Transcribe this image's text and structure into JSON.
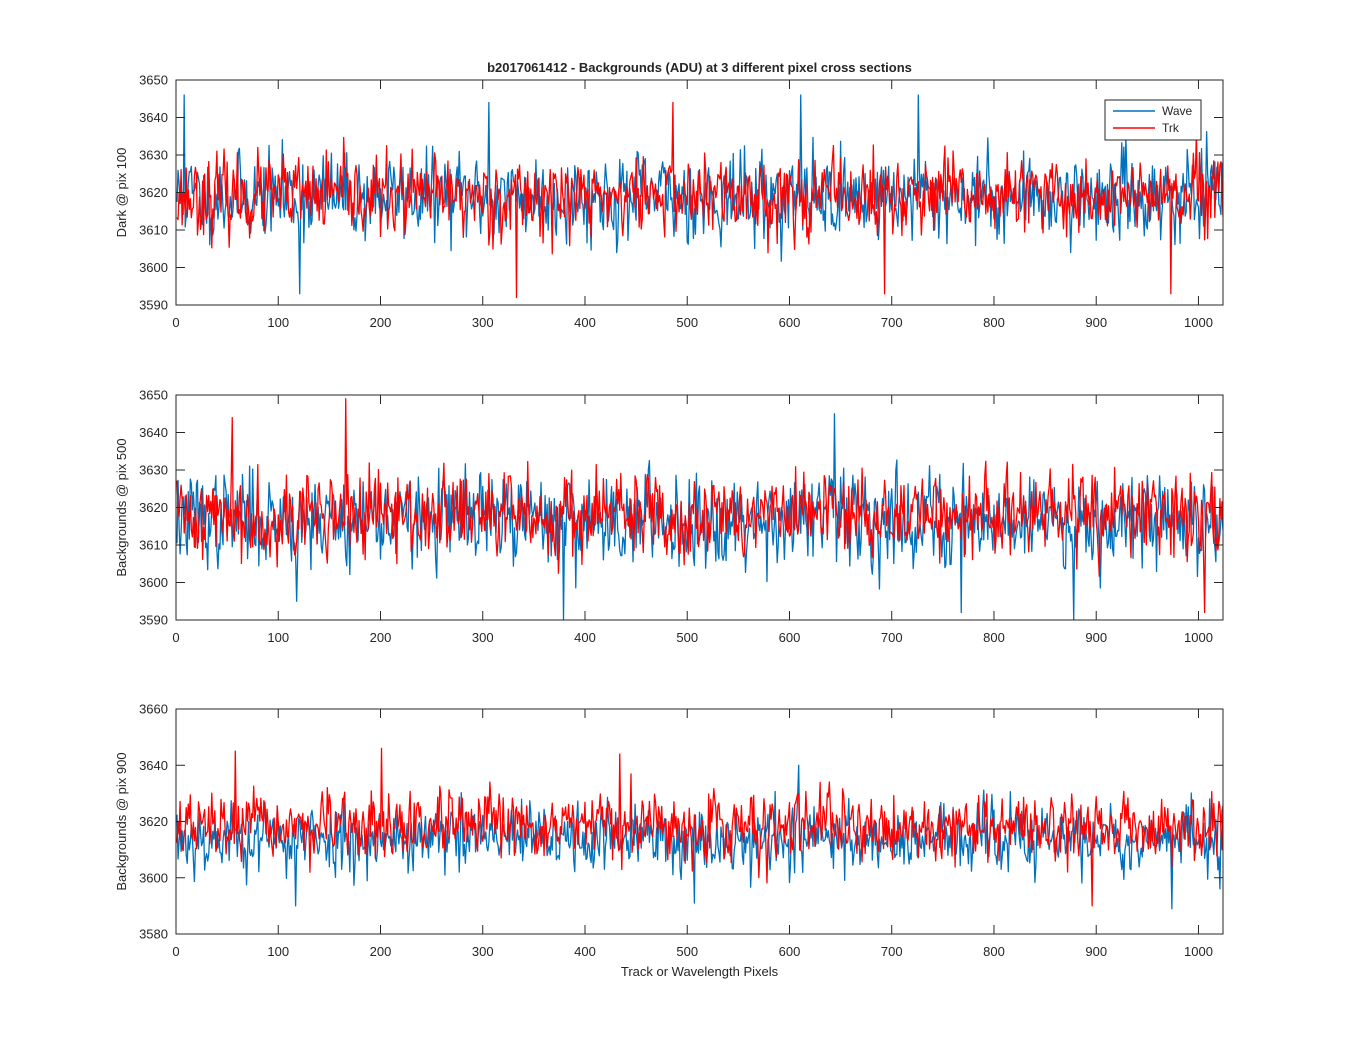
{
  "chart_data": [
    {
      "type": "line",
      "title": "b2017061412 - Backgrounds (ADU) at 3 different pixel cross sections",
      "ylabel": "Dark @ pix 100",
      "xlabel": "",
      "xlim": [
        0,
        1024
      ],
      "ylim": [
        3590,
        3650
      ],
      "xticks": [
        0,
        100,
        200,
        300,
        400,
        500,
        600,
        700,
        800,
        900,
        1000
      ],
      "yticks": [
        3590,
        3600,
        3610,
        3620,
        3630,
        3640,
        3650
      ],
      "grid": false,
      "legend": "top-right",
      "series": [
        {
          "name": "Wave",
          "color": "#0072BD",
          "mean": 3619,
          "noise": 6.5,
          "n": 1024,
          "seed": 11,
          "min": 3593,
          "max": 3646,
          "peaks": [
            [
              7,
              3646
            ],
            [
              120,
              3593
            ],
            [
              305,
              3644
            ],
            [
              610,
              3646
            ],
            [
              725,
              3646
            ]
          ]
        },
        {
          "name": "Trk",
          "color": "#FF0000",
          "mean": 3619,
          "noise": 6,
          "n": 1024,
          "seed": 23,
          "min": 3592,
          "max": 3644,
          "peaks": [
            [
              332,
              3592
            ],
            [
              485,
              3644
            ],
            [
              692,
              3593
            ],
            [
              972,
              3593
            ]
          ]
        }
      ]
    },
    {
      "type": "line",
      "title": "",
      "ylabel": "Backgrounds @ pix 500",
      "xlabel": "",
      "xlim": [
        0,
        1024
      ],
      "ylim": [
        3590,
        3650
      ],
      "xticks": [
        0,
        100,
        200,
        300,
        400,
        500,
        600,
        700,
        800,
        900,
        1000
      ],
      "yticks": [
        3590,
        3600,
        3610,
        3620,
        3630,
        3640,
        3650
      ],
      "grid": false,
      "series": [
        {
          "name": "Wave",
          "color": "#0072BD",
          "mean": 3617,
          "noise": 7,
          "n": 1024,
          "seed": 37,
          "min": 3590,
          "max": 3645,
          "peaks": [
            [
              117,
              3595
            ],
            [
              378,
              3590
            ],
            [
              643,
              3645
            ],
            [
              767,
              3592
            ],
            [
              877,
              3590
            ]
          ]
        },
        {
          "name": "Trk",
          "color": "#FF0000",
          "mean": 3618,
          "noise": 6.5,
          "n": 1024,
          "seed": 41,
          "min": 3592,
          "max": 3649,
          "peaks": [
            [
              54,
              3644
            ],
            [
              165,
              3649
            ],
            [
              1005,
              3592
            ]
          ]
        }
      ]
    },
    {
      "type": "line",
      "title": "",
      "ylabel": "Backgrounds @ pix 900",
      "xlabel": "Track or Wavelength Pixels",
      "xlim": [
        0,
        1024
      ],
      "ylim": [
        3580,
        3660
      ],
      "xticks": [
        0,
        100,
        200,
        300,
        400,
        500,
        600,
        700,
        800,
        900,
        1000
      ],
      "yticks": [
        3580,
        3600,
        3620,
        3640,
        3660
      ],
      "grid": false,
      "series": [
        {
          "name": "Wave",
          "color": "#0072BD",
          "mean": 3614,
          "noise": 7,
          "n": 1024,
          "seed": 53,
          "min": 3589,
          "max": 3640,
          "peaks": [
            [
              116,
              3590
            ],
            [
              506,
              3591
            ],
            [
              608,
              3640
            ],
            [
              973,
              3589
            ]
          ]
        },
        {
          "name": "Trk",
          "color": "#FF0000",
          "mean": 3618,
          "noise": 6.5,
          "n": 1024,
          "seed": 67,
          "min": 3590,
          "max": 3646,
          "peaks": [
            [
              57,
              3645
            ],
            [
              200,
              3646
            ],
            [
              433,
              3644
            ],
            [
              895,
              3590
            ]
          ]
        }
      ]
    }
  ]
}
